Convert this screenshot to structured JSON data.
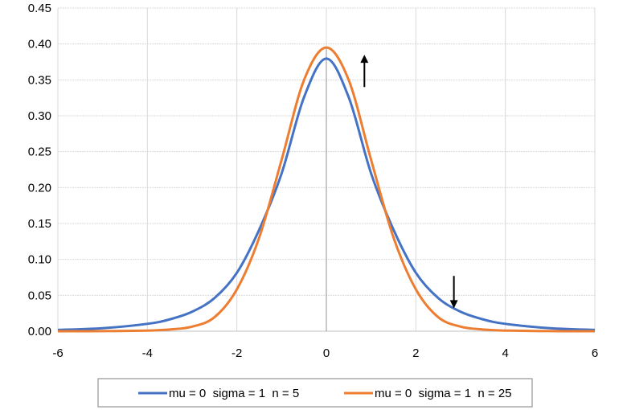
{
  "chart_data": {
    "type": "line",
    "title": "",
    "xlabel": "",
    "ylabel": "",
    "xlim": [
      -6,
      6
    ],
    "ylim": [
      0,
      0.45
    ],
    "x_ticks": [
      "-6",
      "-4",
      "-2",
      "0",
      "2",
      "4",
      "6"
    ],
    "y_ticks": [
      "0.00",
      "0.05",
      "0.10",
      "0.15",
      "0.20",
      "0.25",
      "0.30",
      "0.35",
      "0.40",
      "0.45"
    ],
    "grid": true,
    "legend_position": "bottom",
    "series": [
      {
        "name": "mu = 0  sigma = 1  n = 5",
        "color": "#4472C4",
        "x": [
          -6,
          -5,
          -4,
          -3.5,
          -3,
          -2.5,
          -2,
          -1.5,
          -1,
          -0.5,
          0,
          0.5,
          1,
          1.5,
          2,
          2.5,
          3,
          3.5,
          4,
          5,
          6
        ],
        "y": [
          0.0018,
          0.0042,
          0.0103,
          0.0165,
          0.0271,
          0.0462,
          0.0814,
          0.1415,
          0.2196,
          0.3257,
          0.3796,
          0.3257,
          0.2196,
          0.1415,
          0.0814,
          0.0462,
          0.0271,
          0.0165,
          0.0103,
          0.0042,
          0.0018
        ]
      },
      {
        "name": "mu = 0  sigma = 1  n = 25",
        "color": "#ED7D31",
        "x": [
          -6,
          -5,
          -4,
          -3.5,
          -3,
          -2.5,
          -2,
          -1.5,
          -1,
          -0.5,
          0,
          0.5,
          1,
          1.5,
          2,
          2.5,
          3,
          3.5,
          4,
          5,
          6
        ],
        "y": [
          0.0,
          0.0001,
          0.0009,
          0.0024,
          0.0064,
          0.0195,
          0.0583,
          0.1306,
          0.2386,
          0.3496,
          0.395,
          0.3496,
          0.2386,
          0.1306,
          0.0583,
          0.0195,
          0.0064,
          0.0024,
          0.0009,
          0.0001,
          0.0
        ]
      }
    ],
    "vertical_line": {
      "x": 0,
      "color": "#A5A5A5"
    },
    "annotations": [
      {
        "type": "arrow",
        "direction": "up",
        "x": 0.85,
        "y_from": 0.34,
        "y_to": 0.385
      },
      {
        "type": "arrow",
        "direction": "down",
        "x": 2.85,
        "y_from": 0.077,
        "y_to": 0.032
      }
    ]
  }
}
